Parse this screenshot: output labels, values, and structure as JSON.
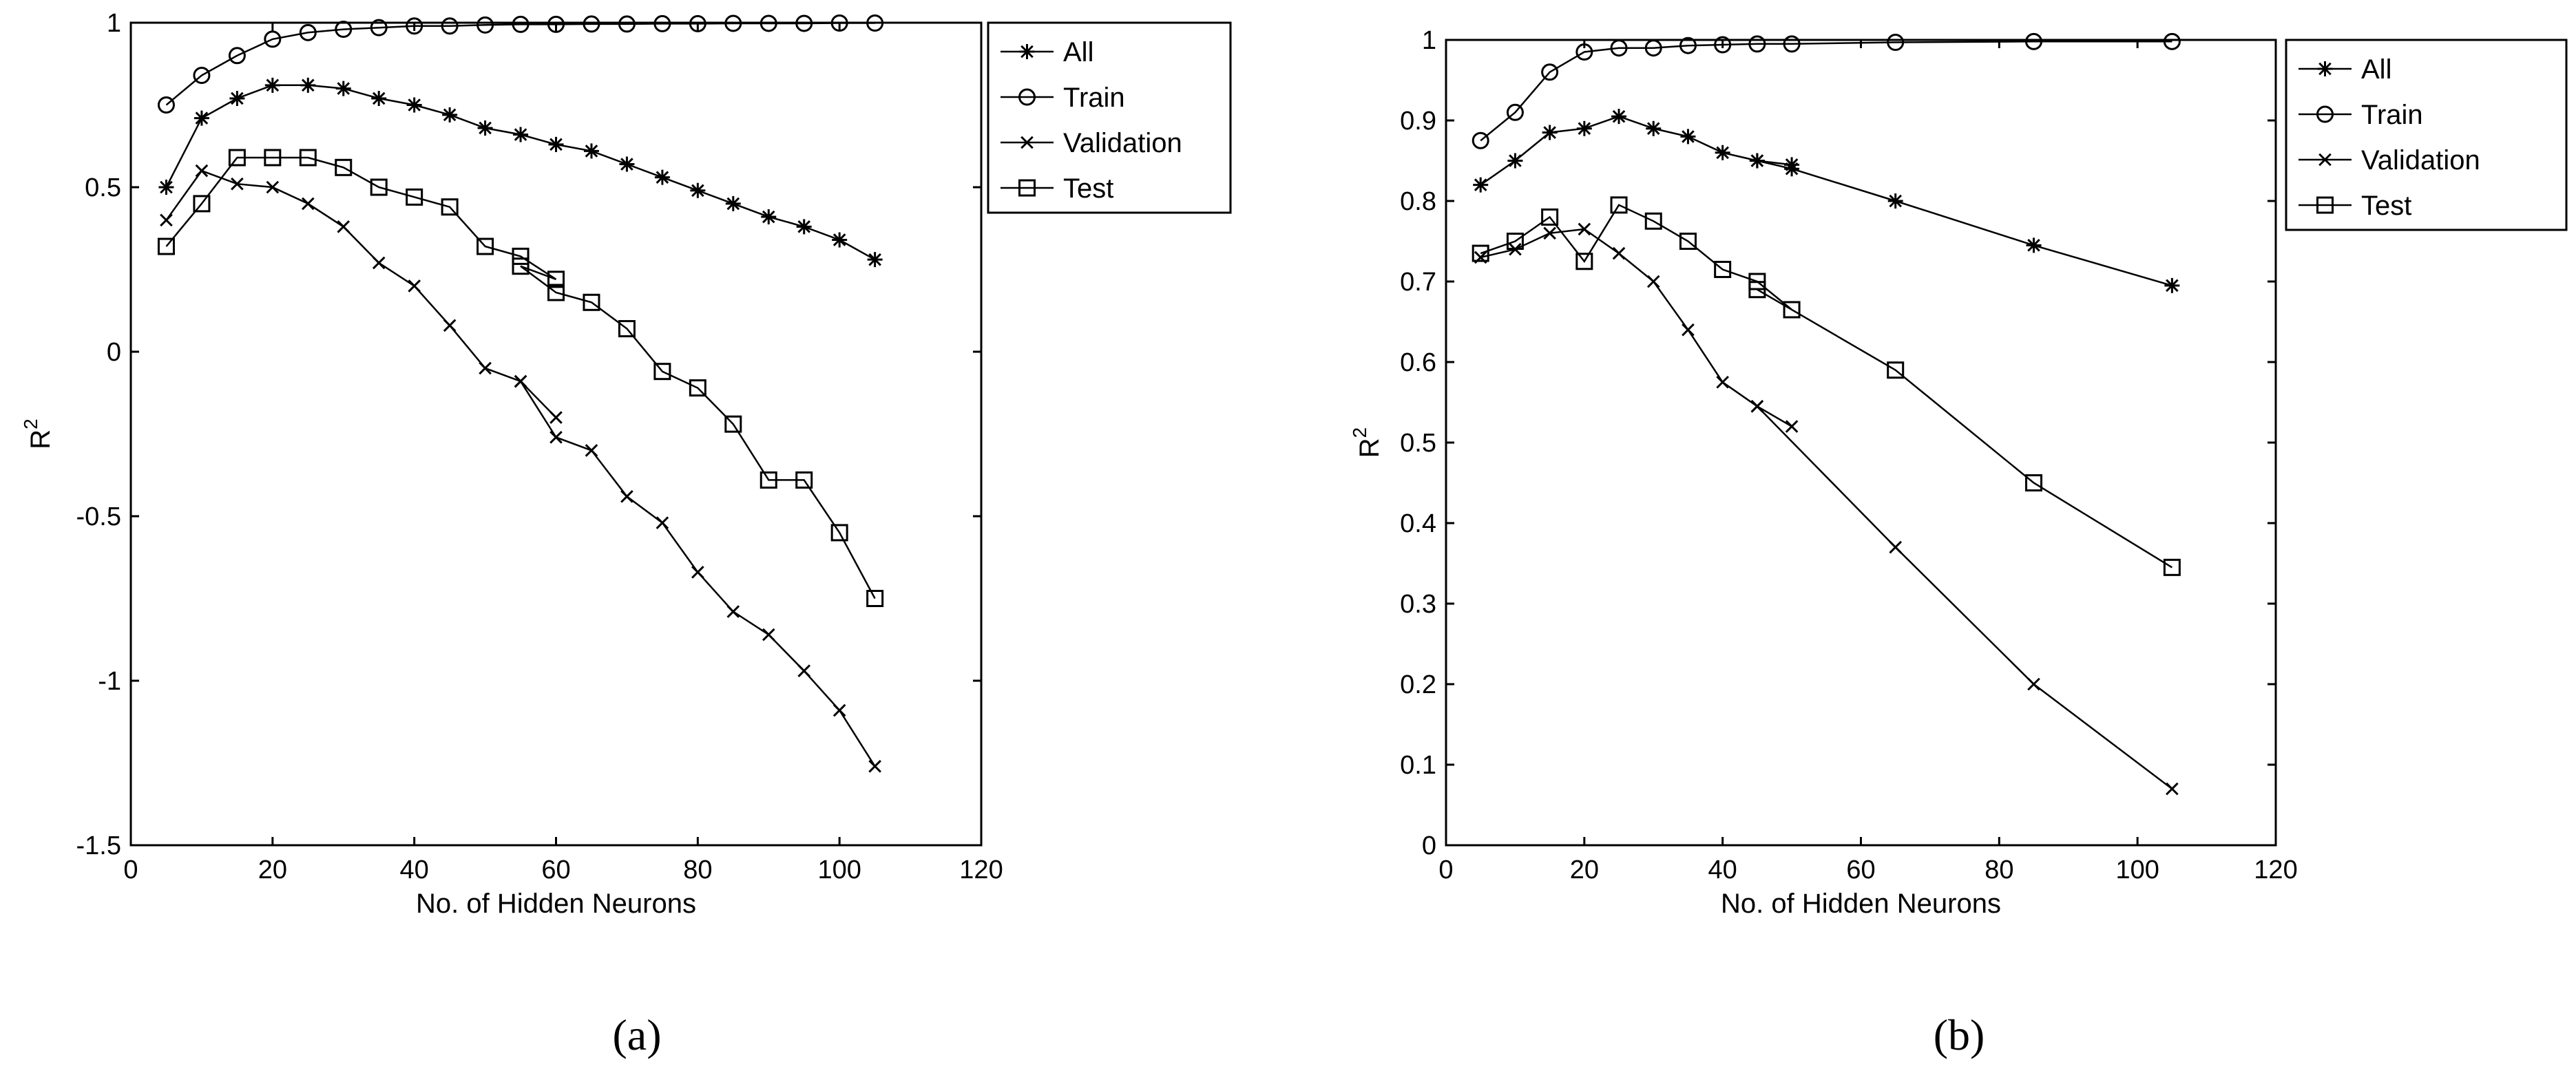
{
  "figure": {
    "captions": [
      "(a)",
      "(b)"
    ]
  },
  "chart_data": [
    {
      "type": "line",
      "panel_label": "(a)",
      "title": "",
      "xlabel": "No. of Hidden Neurons",
      "ylabel": "R",
      "ylabel_superscript": "2",
      "xlim": [
        0,
        120
      ],
      "ylim": [
        -1.5,
        1
      ],
      "xticks": [
        0,
        20,
        40,
        60,
        80,
        100,
        120
      ],
      "yticks": [
        -1.5,
        -1,
        -0.5,
        0,
        0.5,
        1
      ],
      "xtick_labels": [
        "0",
        "20",
        "40",
        "60",
        "80",
        "100",
        "120"
      ],
      "ytick_labels": [
        "-1.5",
        "-1",
        "-0.5",
        "0",
        "0.5",
        "1"
      ],
      "legend_position": "outside top-right",
      "series": [
        {
          "name": "All",
          "marker": "star",
          "x": [
            5,
            10,
            15,
            20,
            25,
            30,
            35,
            40,
            45,
            50,
            55,
            60,
            65,
            70,
            75,
            80,
            85,
            90,
            95,
            100,
            105
          ],
          "y": [
            0.5,
            0.71,
            0.77,
            0.81,
            0.81,
            0.8,
            0.77,
            0.75,
            0.72,
            0.68,
            0.66,
            0.63,
            0.61,
            0.57,
            0.53,
            0.49,
            0.45,
            0.41,
            0.38,
            0.34,
            0.28
          ]
        },
        {
          "name": "Train",
          "marker": "circle",
          "x": [
            5,
            10,
            15,
            20,
            25,
            30,
            35,
            40,
            45,
            50,
            55,
            60,
            65,
            70,
            75,
            80,
            85,
            90,
            95,
            100,
            105
          ],
          "y": [
            0.75,
            0.84,
            0.9,
            0.95,
            0.97,
            0.98,
            0.985,
            0.99,
            0.99,
            0.993,
            0.995,
            0.995,
            0.996,
            0.996,
            0.997,
            0.997,
            0.998,
            0.998,
            0.998,
            0.999,
            0.999
          ]
        },
        {
          "name": "Validation",
          "marker": "x",
          "x": [
            5,
            10,
            15,
            20,
            25,
            30,
            35,
            40,
            45,
            50,
            55,
            60,
            55,
            60,
            65,
            70,
            75,
            80,
            85,
            90,
            95,
            100,
            105
          ],
          "y": [
            0.4,
            0.55,
            0.51,
            0.5,
            0.45,
            0.38,
            0.27,
            0.2,
            0.08,
            -0.05,
            -0.09,
            -0.2,
            -0.09,
            -0.26,
            -0.3,
            -0.44,
            -0.52,
            -0.67,
            -0.79,
            -0.86,
            -0.97,
            -1.09,
            -1.26
          ]
        },
        {
          "name": "Test",
          "marker": "square",
          "x": [
            5,
            10,
            15,
            20,
            25,
            30,
            35,
            40,
            45,
            50,
            55,
            60,
            55,
            60,
            65,
            70,
            75,
            80,
            85,
            90,
            95,
            100,
            105
          ],
          "y": [
            0.32,
            0.45,
            0.59,
            0.59,
            0.59,
            0.56,
            0.5,
            0.47,
            0.44,
            0.32,
            0.29,
            0.22,
            0.26,
            0.18,
            0.15,
            0.07,
            -0.06,
            -0.11,
            -0.22,
            -0.39,
            -0.39,
            -0.55,
            -0.75
          ]
        }
      ]
    },
    {
      "type": "line",
      "panel_label": "(b)",
      "title": "",
      "xlabel": "No. of Hidden Neurons",
      "ylabel": "R",
      "ylabel_superscript": "2",
      "xlim": [
        0,
        120
      ],
      "ylim": [
        0,
        1
      ],
      "xticks": [
        0,
        20,
        40,
        60,
        80,
        100,
        120
      ],
      "yticks": [
        0,
        0.1,
        0.2,
        0.3,
        0.4,
        0.5,
        0.6,
        0.7,
        0.8,
        0.9,
        1
      ],
      "xtick_labels": [
        "0",
        "20",
        "40",
        "60",
        "80",
        "100",
        "120"
      ],
      "ytick_labels": [
        "0",
        "0.1",
        "0.2",
        "0.3",
        "0.4",
        "0.5",
        "0.6",
        "0.7",
        "0.8",
        "0.9",
        "1"
      ],
      "legend_position": "outside top-right",
      "series": [
        {
          "name": "All",
          "marker": "star",
          "x": [
            5,
            10,
            15,
            20,
            25,
            30,
            35,
            40,
            45,
            50,
            45,
            50,
            65,
            85,
            105
          ],
          "y": [
            0.82,
            0.85,
            0.885,
            0.89,
            0.905,
            0.89,
            0.88,
            0.86,
            0.85,
            0.845,
            0.85,
            0.84,
            0.8,
            0.745,
            0.695
          ]
        },
        {
          "name": "Train",
          "marker": "circle",
          "x": [
            5,
            10,
            15,
            20,
            25,
            30,
            35,
            40,
            45,
            50,
            65,
            85,
            105
          ],
          "y": [
            0.875,
            0.91,
            0.96,
            0.985,
            0.99,
            0.99,
            0.993,
            0.994,
            0.995,
            0.995,
            0.997,
            0.998,
            0.998
          ]
        },
        {
          "name": "Validation",
          "marker": "x",
          "x": [
            5,
            10,
            15,
            20,
            25,
            30,
            35,
            40,
            45,
            50,
            45,
            65,
            85,
            105
          ],
          "y": [
            0.73,
            0.74,
            0.76,
            0.765,
            0.735,
            0.7,
            0.64,
            0.575,
            0.545,
            0.52,
            0.545,
            0.37,
            0.2,
            0.07
          ]
        },
        {
          "name": "Test",
          "marker": "square",
          "x": [
            5,
            10,
            15,
            20,
            25,
            30,
            35,
            40,
            45,
            50,
            45,
            65,
            85,
            105
          ],
          "y": [
            0.735,
            0.75,
            0.78,
            0.725,
            0.795,
            0.775,
            0.75,
            0.715,
            0.7,
            0.665,
            0.69,
            0.59,
            0.45,
            0.345
          ]
        }
      ]
    }
  ]
}
